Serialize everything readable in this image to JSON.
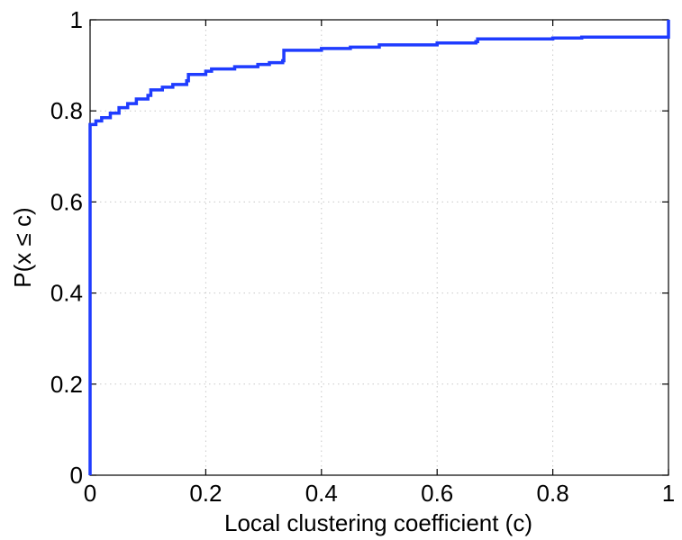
{
  "chart_data": {
    "type": "line",
    "title": "",
    "xlabel": "Local clustering coefficient (c)",
    "ylabel": "P(x ≤ c)",
    "xlim": [
      0,
      1
    ],
    "ylim": [
      0,
      1
    ],
    "grid": true,
    "x_ticks": [
      0,
      0.2,
      0.4,
      0.6,
      0.8,
      1
    ],
    "x_tick_labels": [
      "0",
      "0.2",
      "0.4",
      "0.6",
      "0.8",
      "1"
    ],
    "y_ticks": [
      0,
      0.2,
      0.4,
      0.6,
      0.8,
      1
    ],
    "y_tick_labels": [
      "0",
      "0.2",
      "0.4",
      "0.6",
      "0.8",
      "1"
    ],
    "series": [
      {
        "color": "#1f3cff",
        "step": true,
        "points": [
          [
            0,
            0
          ],
          [
            0,
            0.77
          ],
          [
            0.01,
            0.778
          ],
          [
            0.02,
            0.785
          ],
          [
            0.035,
            0.795
          ],
          [
            0.05,
            0.807
          ],
          [
            0.065,
            0.816
          ],
          [
            0.08,
            0.826
          ],
          [
            0.1,
            0.834
          ],
          [
            0.105,
            0.846
          ],
          [
            0.125,
            0.852
          ],
          [
            0.143,
            0.858
          ],
          [
            0.167,
            0.866
          ],
          [
            0.17,
            0.88
          ],
          [
            0.2,
            0.887
          ],
          [
            0.21,
            0.892
          ],
          [
            0.25,
            0.897
          ],
          [
            0.29,
            0.902
          ],
          [
            0.31,
            0.906
          ],
          [
            0.333,
            0.91
          ],
          [
            0.335,
            0.933
          ],
          [
            0.4,
            0.937
          ],
          [
            0.45,
            0.94
          ],
          [
            0.5,
            0.945
          ],
          [
            0.6,
            0.949
          ],
          [
            0.667,
            0.952
          ],
          [
            0.67,
            0.958
          ],
          [
            0.8,
            0.96
          ],
          [
            0.85,
            0.962
          ],
          [
            1.0,
            0.962
          ],
          [
            1.0,
            1.0
          ]
        ]
      }
    ]
  }
}
